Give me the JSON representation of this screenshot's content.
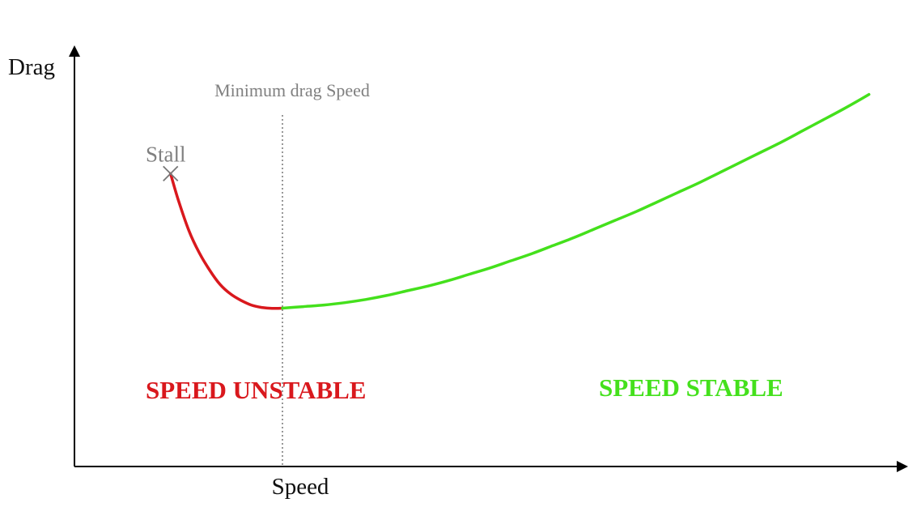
{
  "chart_data": {
    "type": "line",
    "title": "",
    "xlabel": "Speed",
    "ylabel": "Drag",
    "grid": false,
    "legend": "none",
    "series": [
      {
        "name": "",
        "color": "#d9181d",
        "x": [
          0.462,
          0.5,
          0.55,
          0.6,
          0.65,
          0.7,
          0.75,
          0.8,
          0.85,
          0.9,
          0.95,
          1.0
        ],
        "y": [
          1.85,
          1.68,
          1.49,
          1.35,
          1.24,
          1.15,
          1.09,
          1.05,
          1.02,
          1.005,
          0.999,
          1.0
        ]
      },
      {
        "name": "",
        "color": "#44e01c",
        "x": [
          1.0,
          1.1,
          1.2,
          1.3,
          1.4,
          1.5,
          1.6,
          1.7,
          1.8,
          1.9,
          2.0,
          2.1,
          2.2,
          2.3,
          2.4,
          2.5,
          2.6,
          2.7,
          2.8,
          2.9,
          3.0,
          3.1,
          3.2,
          3.3,
          3.4,
          3.5,
          3.6,
          3.7,
          3.82
        ],
        "y": [
          1.0,
          1.01,
          1.02,
          1.035,
          1.055,
          1.08,
          1.11,
          1.14,
          1.175,
          1.215,
          1.255,
          1.3,
          1.345,
          1.395,
          1.445,
          1.5,
          1.555,
          1.61,
          1.67,
          1.73,
          1.79,
          1.855,
          1.92,
          1.985,
          2.05,
          2.12,
          2.19,
          2.26,
          2.35
        ]
      }
    ],
    "xlim": [
      -0.0,
      4.0
    ],
    "ylim": [
      0,
      2.65
    ],
    "annotations": {
      "min_drag_label": "Minimum drag Speed",
      "min_drag_x": 1.0,
      "stall_label": "Stall",
      "stall_x": 0.462,
      "stall_y": 1.85,
      "unstable_label": "SPEED UNSTABLE",
      "unstable_color": "#d9181d",
      "stable_label": "SPEED STABLE",
      "stable_color": "#44e01c"
    }
  }
}
